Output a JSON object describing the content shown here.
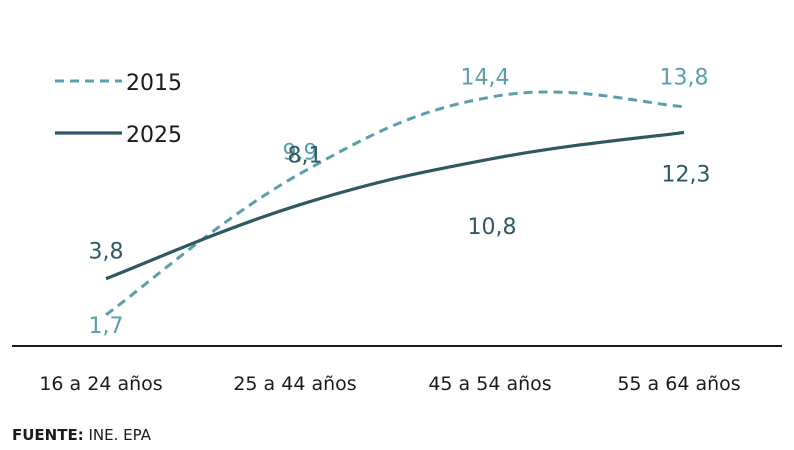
{
  "chart_data": {
    "type": "line",
    "categories": [
      "16 a 24 años",
      "25 a 44 años",
      "45 a 54 años",
      "55 a 64 años"
    ],
    "series": [
      {
        "name": "2015",
        "values": [
          1.7,
          9.9,
          14.4,
          13.8
        ],
        "labels": [
          "1,7",
          "9,9",
          "14,4",
          "13,8"
        ],
        "color": "#5a9fab",
        "style": "dashed"
      },
      {
        "name": "2025",
        "values": [
          3.8,
          8.1,
          10.8,
          12.3
        ],
        "labels": [
          "3,8",
          "8,1",
          "10,8",
          "12,3"
        ],
        "color": "#2f5962",
        "style": "solid"
      }
    ],
    "legend_position": "top-left",
    "grid": false
  },
  "source": {
    "label": "FUENTE:",
    "text": " INE. EPA"
  }
}
